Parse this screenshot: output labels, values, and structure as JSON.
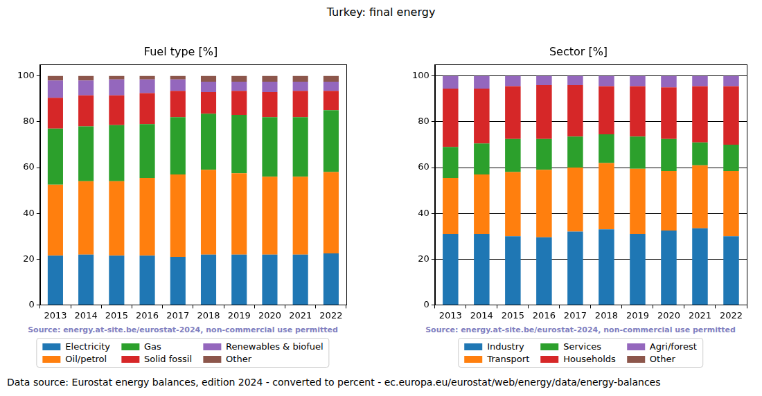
{
  "title": "Turkey: final energy",
  "note": "Data source: Eurostat energy balances, edition 2024 - converted to percent - ec.europa.eu/eurostat/web/energy/data/energy-balances",
  "chart_data": [
    {
      "type": "bar",
      "title": "Fuel type [%]",
      "source": "Source: energy.at-site.be/eurostat-2024, non-commercial use permitted",
      "stacked": true,
      "grid": false,
      "categories": [
        "2013",
        "2014",
        "2015",
        "2016",
        "2017",
        "2018",
        "2019",
        "2020",
        "2021",
        "2022"
      ],
      "ylim": [
        0,
        105
      ],
      "yticks": [
        0,
        20,
        40,
        60,
        80,
        100
      ],
      "series": [
        {
          "name": "Electricity",
          "color": "#1f77b4",
          "values": [
            21.5,
            22,
            21.5,
            21.5,
            21,
            22,
            22,
            22,
            22,
            22.5
          ]
        },
        {
          "name": "Oil/petrol",
          "color": "#ff7f0e",
          "values": [
            31,
            32,
            32.5,
            34,
            36,
            37,
            35.5,
            34,
            34,
            35.5
          ]
        },
        {
          "name": "Gas",
          "color": "#2ca02c",
          "values": [
            24.5,
            24,
            24.5,
            23.5,
            25,
            24.5,
            25.5,
            26,
            26,
            27
          ]
        },
        {
          "name": "Solid fossil",
          "color": "#d62728",
          "values": [
            13.5,
            13.5,
            13,
            13.5,
            11.5,
            9.5,
            10.5,
            11,
            11.5,
            8.5
          ]
        },
        {
          "name": "Renewables & biofuel",
          "color": "#9467bd",
          "values": [
            7.5,
            6.5,
            7,
            6,
            5,
            4.5,
            4,
            4.5,
            4,
            4
          ]
        },
        {
          "name": "Other",
          "color": "#8c564b",
          "values": [
            2,
            2,
            1.5,
            1.5,
            1.5,
            2.5,
            2.5,
            2.5,
            2.5,
            2.5
          ]
        }
      ]
    },
    {
      "type": "bar",
      "title": "Sector [%]",
      "source": "Source: energy.at-site.be/eurostat-2024, non-commercial use permitted",
      "stacked": true,
      "grid": true,
      "categories": [
        "2013",
        "2014",
        "2015",
        "2016",
        "2017",
        "2018",
        "2019",
        "2020",
        "2021",
        "2022"
      ],
      "ylim": [
        0,
        105
      ],
      "yticks": [
        0,
        20,
        40,
        60,
        80,
        100
      ],
      "series": [
        {
          "name": "Industry",
          "color": "#1f77b4",
          "values": [
            31,
            31,
            30,
            29.5,
            32,
            33,
            31,
            32.5,
            33.5,
            30
          ]
        },
        {
          "name": "Transport",
          "color": "#ff7f0e",
          "values": [
            24.5,
            26,
            28,
            29.5,
            28,
            29,
            28.5,
            26,
            27.5,
            28.5
          ]
        },
        {
          "name": "Services",
          "color": "#2ca02c",
          "values": [
            13.5,
            13.5,
            14.5,
            13.5,
            13.5,
            12.5,
            14,
            14,
            10,
            11.5
          ]
        },
        {
          "name": "Households",
          "color": "#d62728",
          "values": [
            25.5,
            24,
            23,
            23.5,
            22.5,
            21,
            22,
            22.5,
            24.5,
            25.5
          ]
        },
        {
          "name": "Agri/forest",
          "color": "#9467bd",
          "values": [
            5.5,
            5.5,
            4.5,
            4,
            4,
            4.5,
            4.5,
            5,
            4.5,
            4.5
          ]
        },
        {
          "name": "Other",
          "color": "#8c564b",
          "values": [
            0,
            0,
            0,
            0,
            0,
            0,
            0,
            0,
            0,
            0
          ]
        }
      ]
    }
  ]
}
